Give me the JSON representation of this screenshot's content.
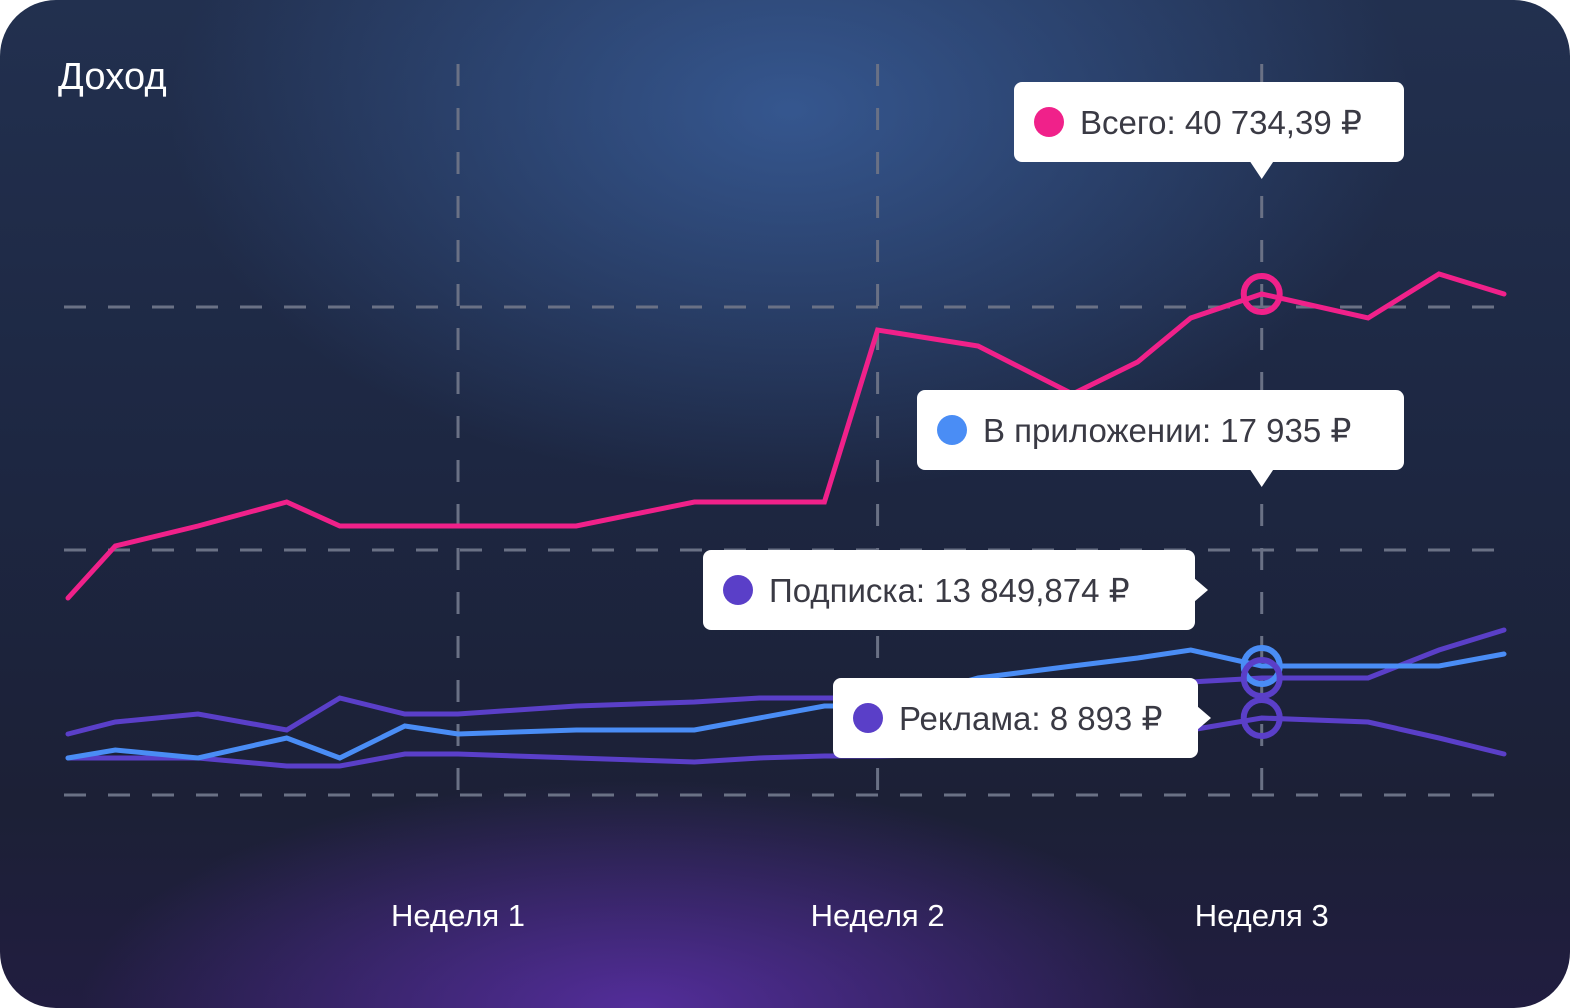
{
  "colors": {
    "total": "#f0218a",
    "app": "#4a8df5",
    "subscription": "#5a3fc8",
    "ads": "#5a3fc8",
    "grid": "#6a7185",
    "tooltip_bg": "#ffffff",
    "tooltip_text": "#3a3a44"
  },
  "chart_data": {
    "type": "line",
    "title": "Доход",
    "xlabel": "",
    "ylabel": "",
    "x_tick_labels": [
      "Неделя 1",
      "Неделя 2",
      "Неделя 3"
    ],
    "x": [
      0,
      0.4,
      1.1,
      1.85,
      2.3,
      2.85,
      3.3,
      4.3,
      5.3,
      5.85,
      6.4,
      6.85,
      7.7,
      8.5,
      9.05,
      9.5,
      10.1,
      11,
      11.6,
      12.15
    ],
    "grid": true,
    "legend": "none",
    "series": [
      {
        "key": "total",
        "name": "Всего",
        "values": [
          40,
          53,
          58,
          64,
          58,
          58,
          58,
          58,
          64,
          64,
          64,
          107,
          103,
          91,
          99,
          110,
          116,
          110,
          121,
          116
        ],
        "tooltip": "Всего: 40 734,39 ₽",
        "highlight_index": 16
      },
      {
        "key": "app",
        "name": "В приложении",
        "values": [
          0,
          2,
          0,
          5,
          0,
          8,
          6,
          7,
          7,
          10,
          13,
          13,
          20,
          23,
          25,
          27,
          23,
          23,
          23,
          26
        ],
        "tooltip": "В приложении: 17 935 ₽",
        "highlight_index": 16
      },
      {
        "key": "subscription",
        "name": "Подписка",
        "values": [
          6,
          9,
          11,
          7,
          15,
          11,
          11,
          13,
          14,
          15,
          15,
          15,
          15,
          15,
          15,
          19,
          20,
          20,
          27,
          32
        ],
        "tooltip": "Подписка: 13 849,874 ₽",
        "highlight_index": 16
      },
      {
        "key": "ads",
        "name": "Реклама",
        "values": [
          0,
          0,
          0,
          -2,
          -2,
          1,
          1,
          0,
          -1,
          0,
          0.5,
          0.5,
          1,
          2,
          3,
          7,
          10,
          9,
          5,
          1
        ],
        "tooltip": "Реклама: 8 893 ₽",
        "highlight_index": 16
      }
    ]
  }
}
